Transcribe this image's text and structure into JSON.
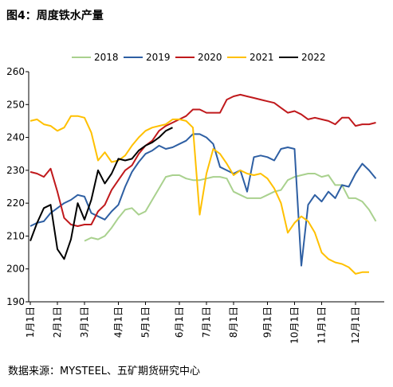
{
  "chart_data": {
    "type": "line",
    "title": "图4：周度铁水产量",
    "source": "数据来源：MYSTEEL、五矿期货研究中心",
    "categories": [
      "1月1日",
      null,
      null,
      null,
      "2月1日",
      null,
      null,
      null,
      "3月1日",
      null,
      null,
      null,
      null,
      "4月1日",
      null,
      null,
      null,
      "5月1日",
      null,
      null,
      null,
      null,
      "6月1日",
      null,
      null,
      null,
      "7月1日",
      null,
      null,
      null,
      "8月1日",
      null,
      null,
      null,
      null,
      "9月1日",
      null,
      null,
      null,
      "10月1日",
      null,
      null,
      null,
      "11月1日",
      null,
      null,
      null,
      null,
      "12月1日",
      null,
      null,
      null
    ],
    "ylim": [
      190,
      260
    ],
    "yticks": [
      190,
      200,
      210,
      220,
      230,
      240,
      250,
      260
    ],
    "grid": false,
    "legend": "top",
    "series": [
      {
        "name": "2018",
        "color": "#a9d18e",
        "values": [
          null,
          null,
          null,
          null,
          null,
          null,
          null,
          null,
          208.5,
          209.5,
          209,
          210,
          212.5,
          215.5,
          218,
          218.5,
          216.5,
          217.5,
          221,
          224.5,
          228,
          228.5,
          228.5,
          227.5,
          227,
          227,
          227.5,
          228,
          228,
          227.5,
          223.5,
          222.5,
          221.5,
          221.5,
          221.5,
          222.5,
          223.5,
          224,
          227,
          228,
          228.5,
          229,
          229,
          228,
          228.5,
          225.5,
          225.5,
          221.5,
          221.5,
          220.5,
          218,
          214.5
        ]
      },
      {
        "name": "2019",
        "color": "#2e5fa3",
        "values": [
          213,
          214,
          214.5,
          217,
          218.5,
          220,
          221,
          222.5,
          222,
          217,
          216,
          215,
          217.5,
          219.5,
          225,
          229.5,
          232.5,
          235,
          236,
          237.5,
          236.5,
          237,
          238,
          239,
          241,
          241,
          240,
          238,
          231,
          230,
          229,
          230,
          223.5,
          234,
          234.5,
          234,
          233,
          236.5,
          237,
          236.5,
          201,
          219.5,
          222.5,
          220.5,
          223.5,
          221.5,
          225.5,
          225,
          229,
          232,
          230,
          227.5
        ]
      },
      {
        "name": "2020",
        "color": "#c0191c",
        "values": [
          229.5,
          229,
          228,
          230.5,
          223.5,
          215.5,
          213.5,
          213,
          213.5,
          213.5,
          217.5,
          219.5,
          224,
          227,
          230,
          231.5,
          235,
          237.5,
          239,
          242,
          243.5,
          244.5,
          245.5,
          246.5,
          248.5,
          248.5,
          247.5,
          247.5,
          247.5,
          251.5,
          252.5,
          253,
          252.5,
          252,
          251.5,
          251,
          250.5,
          249,
          247.5,
          248,
          247,
          245.5,
          246,
          245.5,
          245,
          244,
          246,
          246,
          243.5,
          244,
          244,
          244.5
        ]
      },
      {
        "name": "2021",
        "color": "#ffc000",
        "values": [
          245,
          245.5,
          244,
          243.5,
          242,
          243,
          246.5,
          246.5,
          246,
          241.5,
          233,
          235.5,
          232.5,
          233,
          234.5,
          237.5,
          240,
          242,
          243,
          243.5,
          244,
          245.5,
          245.5,
          245,
          243,
          216.5,
          229,
          236.5,
          235,
          232,
          228.5,
          230,
          229,
          228.5,
          229,
          227.5,
          224.5,
          220,
          211,
          214,
          216,
          214.5,
          211,
          205,
          203,
          202,
          201.5,
          200.5,
          198.5,
          199,
          199,
          null
        ]
      },
      {
        "name": "2022",
        "color": "#000000",
        "values": [
          208.5,
          214,
          218.5,
          219.5,
          206,
          203,
          209,
          220,
          215,
          221,
          230,
          226,
          229,
          233.5,
          233,
          233.5,
          236,
          237.5,
          238.5,
          240,
          242,
          243,
          null,
          null,
          null,
          null,
          null,
          null,
          null,
          null,
          null,
          null,
          null,
          null,
          null,
          null,
          null,
          null,
          null,
          null,
          null,
          null,
          null,
          null,
          null,
          null,
          null,
          null,
          null,
          null,
          null,
          null
        ]
      }
    ]
  }
}
